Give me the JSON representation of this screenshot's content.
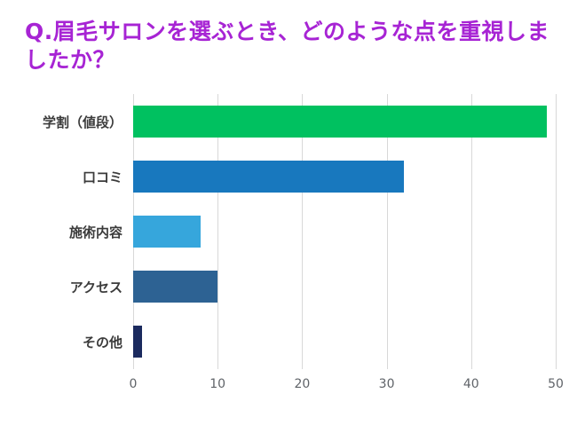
{
  "title_color": "#a724d4",
  "chart_data": {
    "type": "bar",
    "orientation": "horizontal",
    "title": "Q.眉毛サロンを選ぶとき、どのような点を重視しましたか？",
    "categories": [
      "学割（値段）",
      "口コミ",
      "施術内容",
      "アクセス",
      "その他"
    ],
    "values": [
      49,
      32,
      8,
      10,
      1
    ],
    "colors": [
      "#00c160",
      "#1878be",
      "#36a6dc",
      "#2d6293",
      "#1b2a5e"
    ],
    "xlabel": "",
    "ylabel": "",
    "xlim": [
      0,
      50
    ],
    "xticks": [
      0,
      10,
      20,
      30,
      40,
      50
    ],
    "grid": true,
    "legend": "none",
    "grid_color": "#d8d8d8",
    "label_color": "#3b3b3b",
    "tick_color": "#5f6368"
  }
}
